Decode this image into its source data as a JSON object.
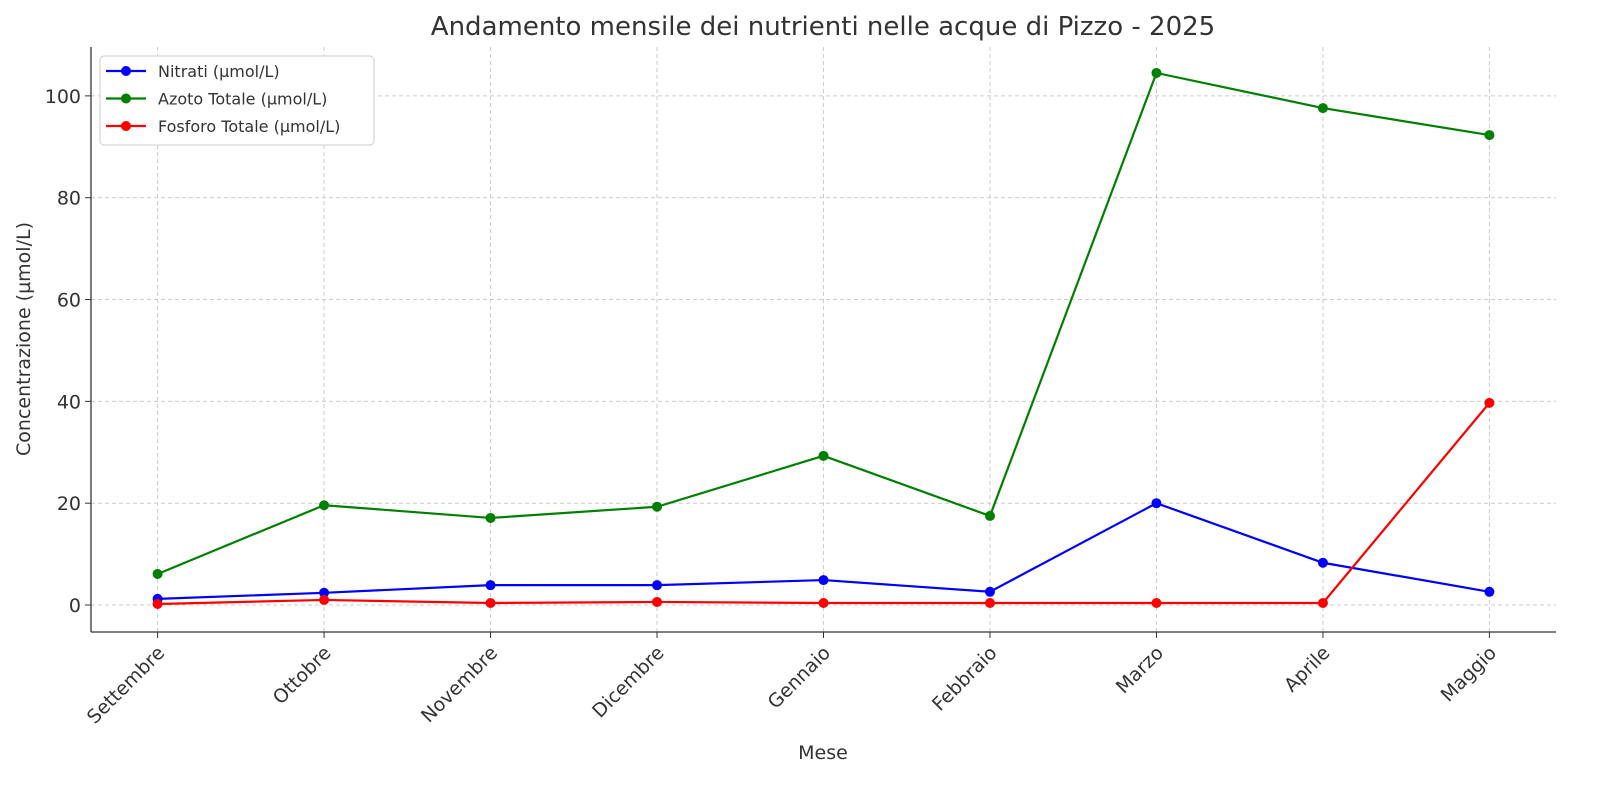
{
  "chart_data": {
    "type": "line",
    "title": "Andamento mensile dei nutrienti nelle acque di Pizzo - 2025",
    "xlabel": "Mese",
    "ylabel": "Concentrazione (µmol/L)",
    "categories": [
      "Settembre",
      "Ottobre",
      "Novembre",
      "Dicembre",
      "Gennaio",
      "Febbraio",
      "Marzo",
      "Aprile",
      "Maggio"
    ],
    "ylim": [
      -5.3,
      109.6
    ],
    "yticks": [
      0,
      20,
      40,
      60,
      80,
      100
    ],
    "grid": true,
    "legend_position": "top-left",
    "series": [
      {
        "name": "Nitrati (µmol/L)",
        "color": "#0000ff",
        "values": [
          1.2,
          2.4,
          3.9,
          3.9,
          4.9,
          2.6,
          20.0,
          8.3,
          2.6
        ]
      },
      {
        "name": "Azoto Totale (µmol/L)",
        "color": "#008000",
        "values": [
          6.1,
          19.6,
          17.1,
          19.3,
          29.3,
          17.5,
          104.5,
          97.6,
          92.3
        ]
      },
      {
        "name": "Fosforo Totale (µmol/L)",
        "color": "#ff0000",
        "values": [
          0.2,
          1.0,
          0.4,
          0.6,
          0.4,
          0.4,
          0.4,
          0.4,
          39.7
        ]
      }
    ]
  }
}
